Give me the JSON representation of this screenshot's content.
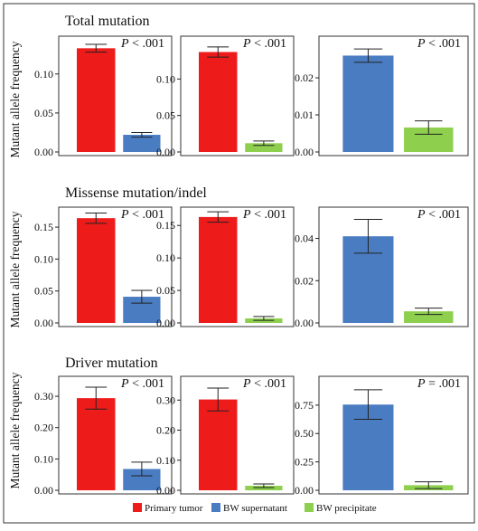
{
  "colors": {
    "primary_tumor": "#ee1b1b",
    "bw_supernatant": "#4a7cc2",
    "bw_precipitate": "#8ecf4e",
    "axis": "#222222",
    "frame": "#333333"
  },
  "y_axis_label": "Mutant allele frequency",
  "legend": [
    {
      "label": "Primary tumor",
      "color_key": "primary_tumor"
    },
    {
      "label": "BW supernatant",
      "color_key": "bw_supernatant"
    },
    {
      "label": "BW precipitate",
      "color_key": "bw_precipitate"
    }
  ],
  "rows": [
    {
      "title": "Total mutation"
    },
    {
      "title": "Missense mutation/indel"
    },
    {
      "title": "Driver mutation"
    }
  ],
  "chart_data": [
    {
      "type": "bar",
      "row": 0,
      "col": 0,
      "p_letter": "P",
      "p_rest": " < .001",
      "ylim": [
        0,
        0.145
      ],
      "ticks": [
        0,
        0.05,
        0.1
      ],
      "tick_labels": [
        "0.00",
        "0.05",
        "0.10"
      ],
      "bars": [
        {
          "group": "primary_tumor",
          "value": 0.133,
          "err": 0.005
        },
        {
          "group": "bw_supernatant",
          "value": 0.022,
          "err": 0.003
        }
      ]
    },
    {
      "type": "bar",
      "row": 0,
      "col": 1,
      "p_letter": "P",
      "p_rest": " < .001",
      "ylim": [
        0,
        0.155
      ],
      "ticks": [
        0,
        0.05,
        0.1
      ],
      "tick_labels": [
        "0.00",
        "0.05",
        "0.10"
      ],
      "bars": [
        {
          "group": "primary_tumor",
          "value": 0.137,
          "err": 0.007
        },
        {
          "group": "bw_precipitate",
          "value": 0.012,
          "err": 0.003
        }
      ]
    },
    {
      "type": "bar",
      "row": 0,
      "col": 2,
      "p_letter": "P",
      "p_rest": " < .001",
      "ylim": [
        0,
        0.0305
      ],
      "ticks": [
        0,
        0.01,
        0.02
      ],
      "tick_labels": [
        "0.00",
        "0.01",
        "0.02"
      ],
      "bars": [
        {
          "group": "bw_supernatant",
          "value": 0.026,
          "err": 0.0018
        },
        {
          "group": "bw_precipitate",
          "value": 0.0066,
          "err": 0.0018
        }
      ]
    },
    {
      "type": "bar",
      "row": 1,
      "col": 0,
      "p_letter": "P",
      "p_rest": " < .001",
      "ylim": [
        0,
        0.177
      ],
      "ticks": [
        0,
        0.05,
        0.1,
        0.15
      ],
      "tick_labels": [
        "0.00",
        "0.05",
        "0.10",
        "0.15"
      ],
      "bars": [
        {
          "group": "primary_tumor",
          "value": 0.164,
          "err": 0.008
        },
        {
          "group": "bw_supernatant",
          "value": 0.041,
          "err": 0.01
        }
      ]
    },
    {
      "type": "bar",
      "row": 1,
      "col": 1,
      "p_letter": "P",
      "p_rest": " < .001",
      "ylim": [
        0,
        0.174
      ],
      "ticks": [
        0,
        0.05,
        0.1,
        0.15
      ],
      "tick_labels": [
        "0.00",
        "0.05",
        "0.10",
        "0.15"
      ],
      "bars": [
        {
          "group": "primary_tumor",
          "value": 0.163,
          "err": 0.008
        },
        {
          "group": "bw_precipitate",
          "value": 0.007,
          "err": 0.003
        }
      ]
    },
    {
      "type": "bar",
      "row": 1,
      "col": 2,
      "p_letter": "P",
      "p_rest": " < .001",
      "ylim": [
        0,
        0.0535
      ],
      "ticks": [
        0,
        0.02,
        0.04
      ],
      "tick_labels": [
        "0.00",
        "0.02",
        "0.04"
      ],
      "bars": [
        {
          "group": "bw_supernatant",
          "value": 0.041,
          "err": 0.008
        },
        {
          "group": "bw_precipitate",
          "value": 0.0055,
          "err": 0.0015
        }
      ]
    },
    {
      "type": "bar",
      "row": 2,
      "col": 0,
      "p_letter": "P",
      "p_rest": " < .001",
      "ylim": [
        0,
        0.355
      ],
      "ticks": [
        0,
        0.1,
        0.2,
        0.3
      ],
      "tick_labels": [
        "0.00",
        "0.10",
        "0.20",
        "0.30"
      ],
      "bars": [
        {
          "group": "primary_tumor",
          "value": 0.294,
          "err": 0.035
        },
        {
          "group": "bw_supernatant",
          "value": 0.068,
          "err": 0.022
        }
      ]
    },
    {
      "type": "bar",
      "row": 2,
      "col": 1,
      "p_letter": "P",
      "p_rest": " < .001",
      "ylim": [
        0,
        0.37
      ],
      "ticks": [
        0,
        0.1,
        0.2,
        0.3
      ],
      "tick_labels": [
        "0.00",
        "0.10",
        "0.20",
        "0.30"
      ],
      "bars": [
        {
          "group": "primary_tumor",
          "value": 0.302,
          "err": 0.038
        },
        {
          "group": "bw_precipitate",
          "value": 0.015,
          "err": 0.006
        }
      ]
    },
    {
      "type": "bar",
      "row": 2,
      "col": 2,
      "p_letter": "P",
      "p_rest": " = .001",
      "ylim": [
        0,
        0.98
      ],
      "ticks": [
        0,
        0.25,
        0.5,
        0.75
      ],
      "tick_labels": [
        "0.00",
        "0.25",
        "0.50",
        "0.75"
      ],
      "bars": [
        {
          "group": "bw_supernatant",
          "value": 0.755,
          "err": 0.13
        },
        {
          "group": "bw_precipitate",
          "value": 0.045,
          "err": 0.03
        }
      ]
    }
  ]
}
